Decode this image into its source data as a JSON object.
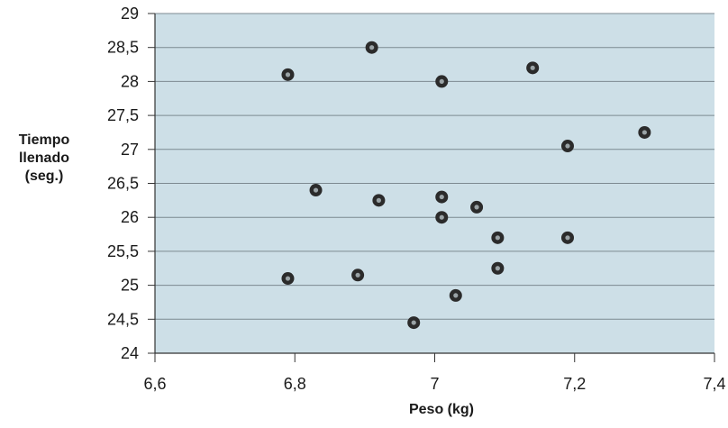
{
  "chart_data": {
    "type": "scatter",
    "title": "",
    "xlabel": "Peso (kg)",
    "ylabel": "Tiempo\nllenado\n(seg.)",
    "xlim": [
      6.6,
      7.4
    ],
    "ylim": [
      24,
      29
    ],
    "xticks": [
      "6,6",
      "6,8",
      "7",
      "7,2",
      "7,4"
    ],
    "yticks": [
      "24",
      "24,5",
      "25",
      "25,5",
      "26",
      "26,5",
      "27",
      "27,5",
      "28",
      "28,5",
      "29"
    ],
    "grid": "horizontal",
    "series": [
      {
        "x": [
          6.79,
          6.79,
          6.83,
          6.89,
          6.91,
          6.92,
          6.97,
          7.01,
          7.01,
          7.01,
          7.03,
          7.06,
          7.09,
          7.09,
          7.14,
          7.19,
          7.19,
          7.3
        ],
        "y": [
          28.1,
          25.1,
          26.4,
          25.15,
          28.5,
          26.25,
          24.45,
          28.0,
          26.3,
          26.0,
          24.85,
          26.15,
          25.7,
          25.25,
          28.2,
          27.05,
          25.7,
          27.25
        ]
      }
    ],
    "colors": {
      "plot_background": "#cddfe7",
      "gridline": "#7d8a91",
      "marker_outer": "#2b2b2b",
      "marker_inner": "#9aa3a6",
      "axis": "#333333"
    }
  }
}
